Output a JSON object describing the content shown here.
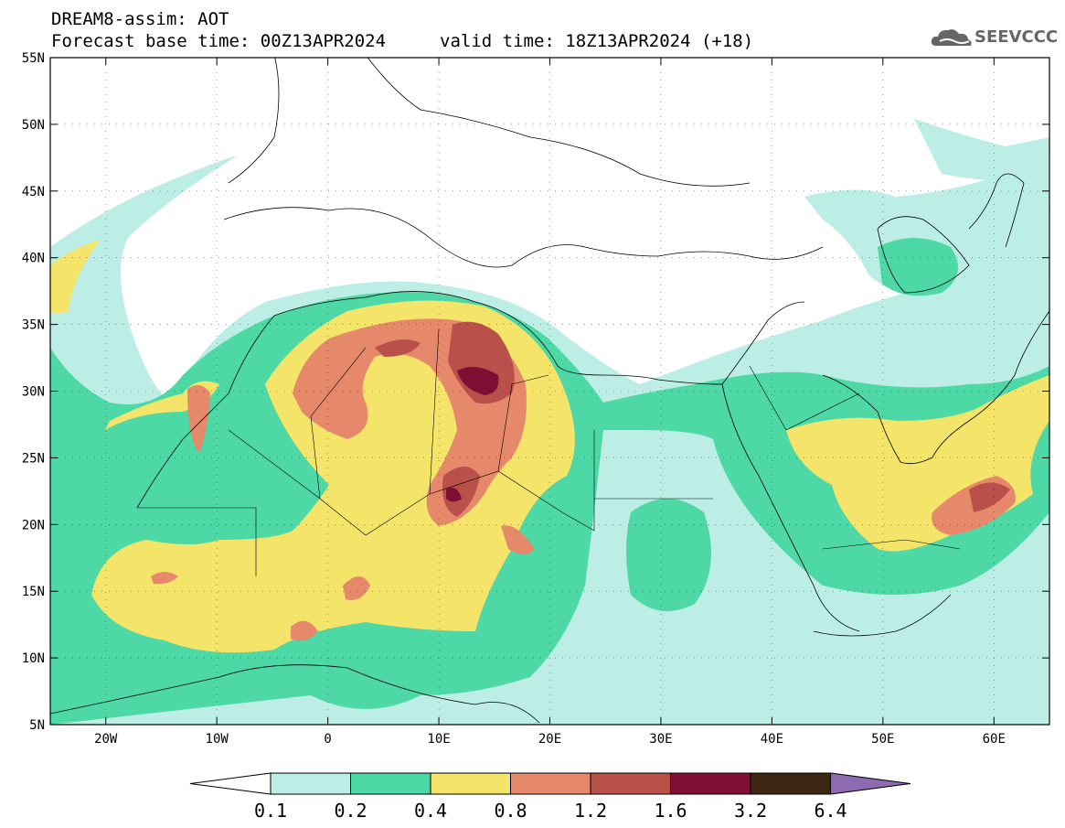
{
  "header": {
    "title": "DREAM8-assim: AOT",
    "base_time": "Forecast base time: 00Z13APR2024",
    "valid_time": "valid time: 18Z13APR2024 (+18)",
    "logo_text": "SEEVCCC"
  },
  "map": {
    "lat_range": [
      5,
      55
    ],
    "lon_range": [
      -25,
      65
    ],
    "lat_ticks": [
      "55N",
      "50N",
      "45N",
      "40N",
      "35N",
      "30N",
      "25N",
      "20N",
      "15N",
      "10N",
      "5N"
    ],
    "lon_ticks": [
      "20W",
      "10W",
      "0",
      "10E",
      "20E",
      "30E",
      "40E",
      "50E",
      "60E"
    ]
  },
  "legend": {
    "labels": [
      "0.1",
      "0.2",
      "0.4",
      "0.8",
      "1.2",
      "1.6",
      "3.2",
      "6.4"
    ],
    "colors": [
      "#ffffff",
      "#bdeee6",
      "#4ed8a6",
      "#f4e46a",
      "#e5896a",
      "#b9514a",
      "#7e0f35",
      "#3c2512",
      "#8e6bb0"
    ]
  }
}
